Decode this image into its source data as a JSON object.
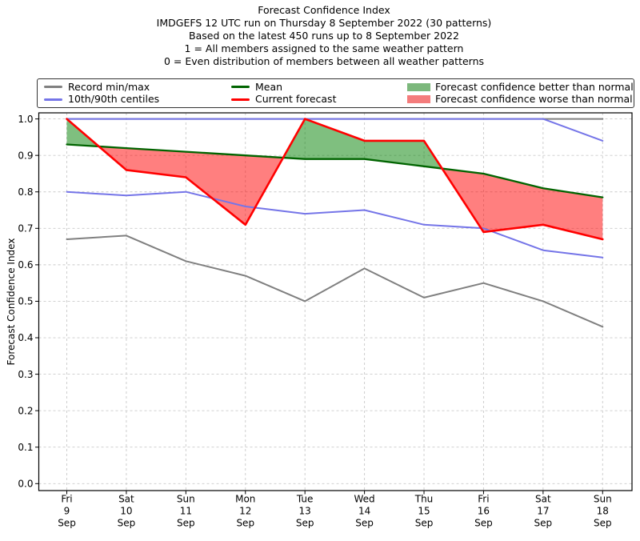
{
  "title": {
    "lines": [
      "Forecast Confidence Index",
      "IMDGEFS 12 UTC run on Thursday 8 September 2022 (30 patterns)",
      "Based on the latest 450 runs up to 8 September 2022",
      "1 = All members assigned to the same weather pattern",
      "0 = Even distribution of members between all weather patterns"
    ]
  },
  "legend": {
    "items": [
      {
        "label": "Record min/max",
        "type": "line",
        "color": "#808080"
      },
      {
        "label": "10th/90th centiles",
        "type": "line",
        "color": "#7575e8"
      },
      {
        "label": "Mean",
        "type": "line",
        "color": "#006400"
      },
      {
        "label": "Current forecast",
        "type": "line",
        "color": "#ff0000"
      },
      {
        "label": "Forecast confidence better than normal",
        "type": "patch",
        "color": "#7cb87c"
      },
      {
        "label": "Forecast confidence worse than normal",
        "type": "patch",
        "color": "#f47c7c"
      }
    ]
  },
  "chart_data": {
    "type": "line",
    "title": "Forecast Confidence Index",
    "xlabel": "",
    "ylabel": "Forecast Confidence Index",
    "ylim": [
      0.0,
      1.0
    ],
    "yticks": [
      0.0,
      0.1,
      0.2,
      0.3,
      0.4,
      0.5,
      0.6,
      0.7,
      0.8,
      0.9,
      1.0
    ],
    "ytick_labels": [
      "0.0",
      "0.1",
      "0.2",
      "0.3",
      "0.4",
      "0.5",
      "0.6",
      "0.7",
      "0.8",
      "0.9",
      "1.0"
    ],
    "grid": true,
    "legend_position": "top",
    "categories": [
      {
        "day": "Fri",
        "date": "9",
        "month": "Sep"
      },
      {
        "day": "Sat",
        "date": "10",
        "month": "Sep"
      },
      {
        "day": "Sun",
        "date": "11",
        "month": "Sep"
      },
      {
        "day": "Mon",
        "date": "12",
        "month": "Sep"
      },
      {
        "day": "Tue",
        "date": "13",
        "month": "Sep"
      },
      {
        "day": "Wed",
        "date": "14",
        "month": "Sep"
      },
      {
        "day": "Thu",
        "date": "15",
        "month": "Sep"
      },
      {
        "day": "Fri",
        "date": "16",
        "month": "Sep"
      },
      {
        "day": "Sat",
        "date": "17",
        "month": "Sep"
      },
      {
        "day": "Sun",
        "date": "18",
        "month": "Sep"
      }
    ],
    "series": [
      {
        "name": "Record max",
        "color": "#808080",
        "width": 2.0,
        "values": [
          1.0,
          1.0,
          1.0,
          1.0,
          1.0,
          1.0,
          1.0,
          1.0,
          1.0,
          1.0
        ]
      },
      {
        "name": "Record min",
        "color": "#808080",
        "width": 2.0,
        "values": [
          0.67,
          0.68,
          0.61,
          0.57,
          0.5,
          0.59,
          0.51,
          0.55,
          0.5,
          0.43
        ]
      },
      {
        "name": "90th centile",
        "color": "#7575e8",
        "width": 2.0,
        "values": [
          1.0,
          1.0,
          1.0,
          1.0,
          1.0,
          1.0,
          1.0,
          1.0,
          1.0,
          0.94
        ]
      },
      {
        "name": "10th centile",
        "color": "#7575e8",
        "width": 2.0,
        "values": [
          0.8,
          0.79,
          0.8,
          0.76,
          0.74,
          0.75,
          0.71,
          0.7,
          0.64,
          0.62
        ]
      },
      {
        "name": "Mean",
        "color": "#006400",
        "width": 2.3,
        "values": [
          0.93,
          0.92,
          0.91,
          0.9,
          0.89,
          0.89,
          0.87,
          0.85,
          0.81,
          0.785
        ]
      },
      {
        "name": "Current forecast",
        "color": "#ff0000",
        "width": 2.6,
        "values": [
          1.0,
          0.86,
          0.84,
          0.71,
          1.0,
          0.94,
          0.94,
          0.69,
          0.71,
          0.67
        ]
      }
    ],
    "fills": {
      "between": [
        "Current forecast",
        "Mean"
      ],
      "better_color": "rgba(0,128,0,0.5)",
      "worse_color": "rgba(255,0,0,0.5)"
    }
  }
}
